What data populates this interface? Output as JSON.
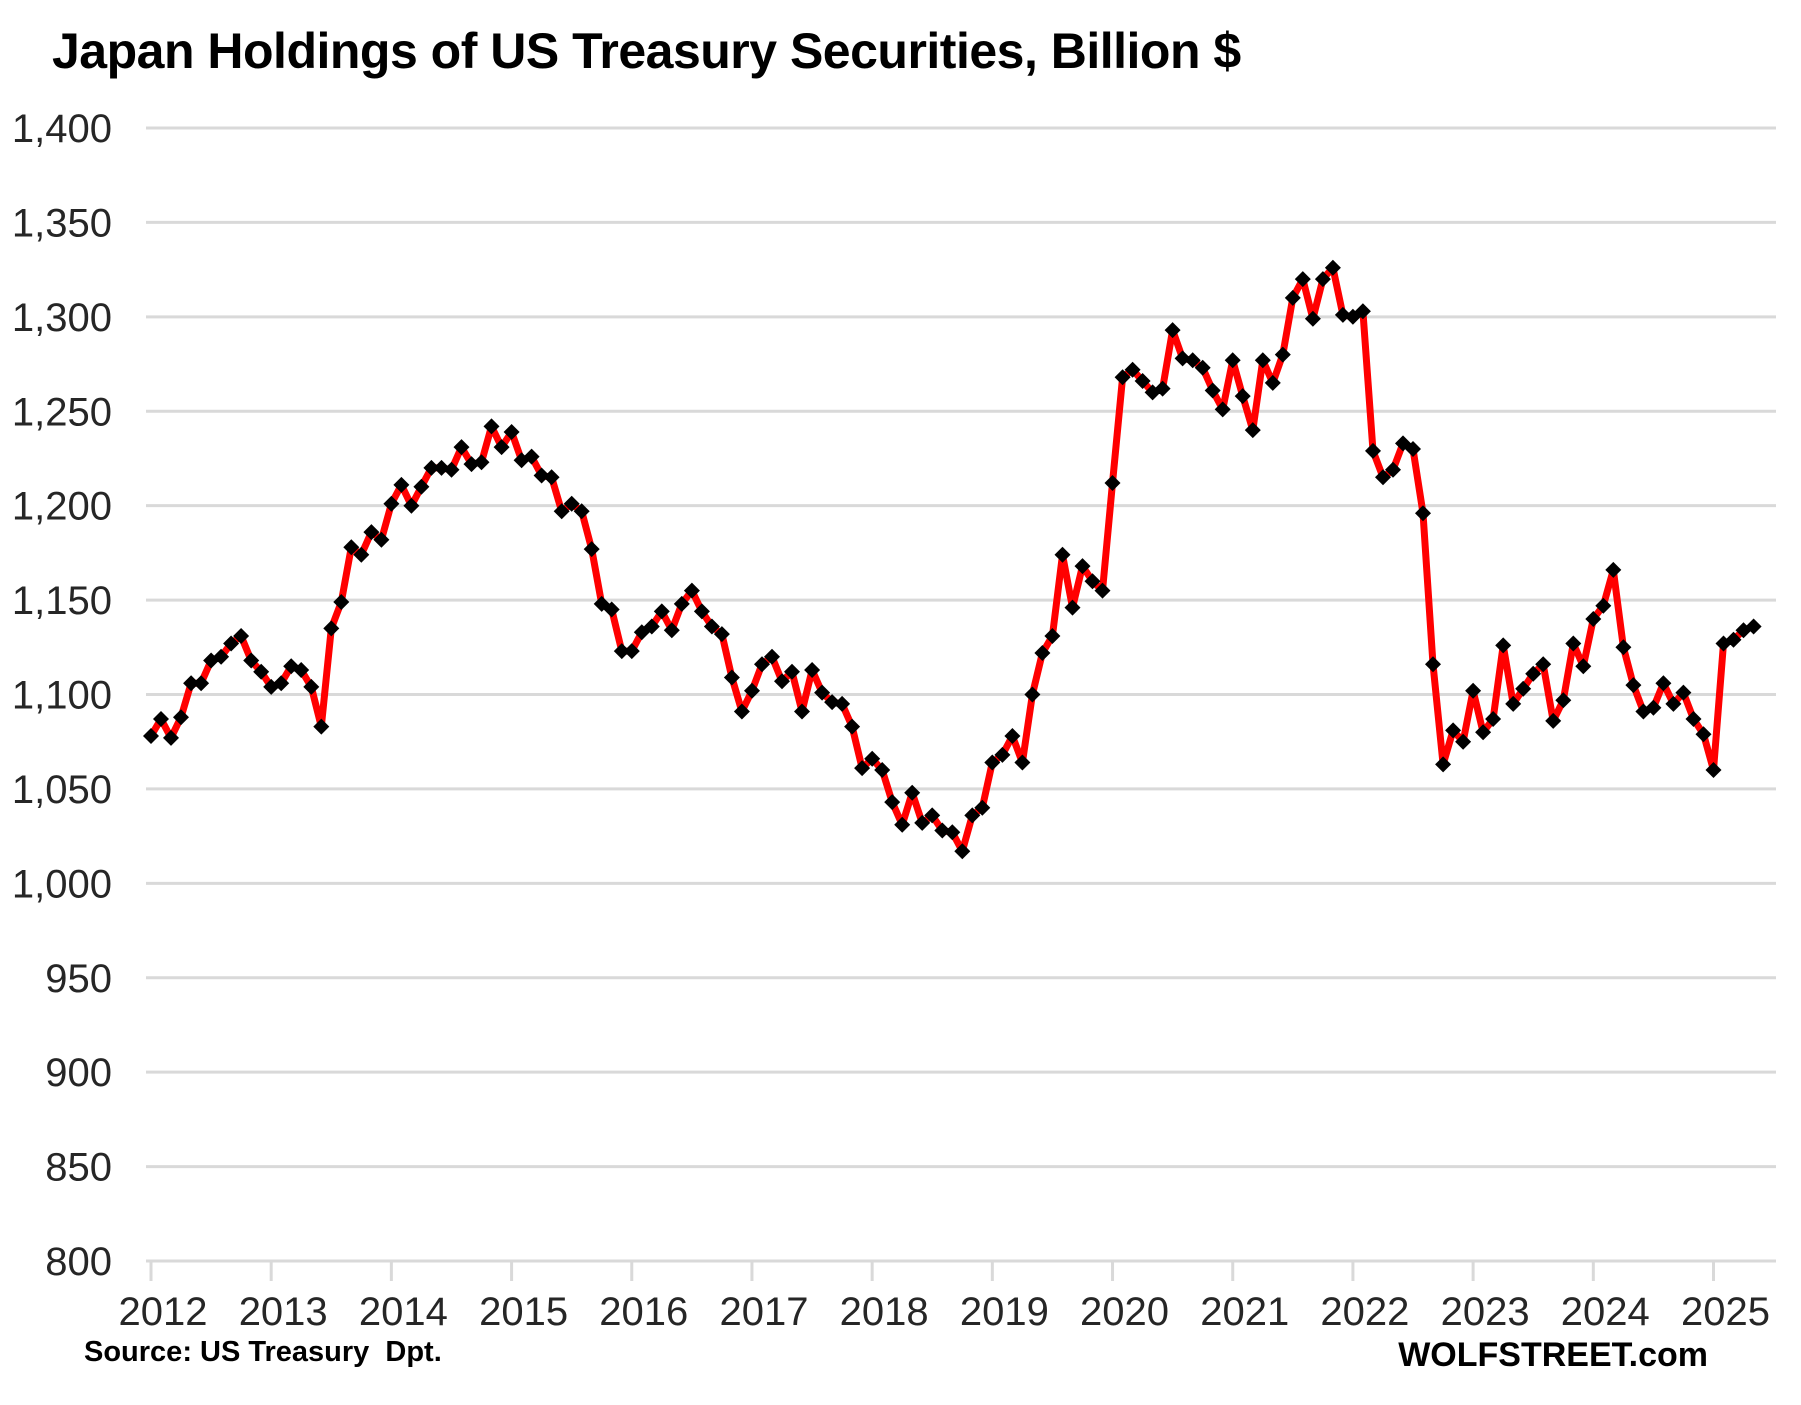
{
  "title": "Japan Holdings of US Treasury Securities, Billion $",
  "source": "Source: US Treasury  Dpt.",
  "branding": "WOLFSTREET.com",
  "chart_data": {
    "type": "line",
    "title": "Japan Holdings of US Treasury Securities, Billion $",
    "ylabel": "Billion $",
    "xlabel": "",
    "frequency": "monthly",
    "start_month": "2012-01",
    "end_month": "2025-05",
    "ylim": [
      800,
      1400
    ],
    "y_tick_step": 50,
    "grid": true,
    "legend": "none",
    "line_color": "#FF0000",
    "marker": "diamond",
    "marker_color": "#000000",
    "gridline_color": "#D9D9D9",
    "axis_label_color": "#262626",
    "x_tick_labels": [
      "2012",
      "2013",
      "2014",
      "2015",
      "2016",
      "2017",
      "2018",
      "2019",
      "2020",
      "2021",
      "2022",
      "2023",
      "2024",
      "2025"
    ],
    "values": [
      1078,
      1087,
      1077,
      1088,
      1106,
      1106,
      1118,
      1120,
      1127,
      1131,
      1118,
      1112,
      1104,
      1106,
      1115,
      1113,
      1104,
      1083,
      1135,
      1149,
      1178,
      1174,
      1186,
      1182,
      1201,
      1211,
      1200,
      1210,
      1220,
      1220,
      1219,
      1231,
      1222,
      1223,
      1242,
      1231,
      1239,
      1224,
      1226,
      1216,
      1215,
      1197,
      1201,
      1197,
      1177,
      1148,
      1145,
      1123,
      1123,
      1133,
      1136,
      1144,
      1134,
      1148,
      1155,
      1144,
      1136,
      1132,
      1109,
      1091,
      1102,
      1116,
      1120,
      1107,
      1112,
      1091,
      1113,
      1101,
      1096,
      1095,
      1083,
      1061,
      1066,
      1060,
      1043,
      1031,
      1048,
      1032,
      1036,
      1028,
      1027,
      1017,
      1036,
      1040,
      1064,
      1068,
      1078,
      1064,
      1100,
      1122,
      1131,
      1174,
      1146,
      1168,
      1160,
      1155,
      1212,
      1268,
      1272,
      1266,
      1260,
      1262,
      1293,
      1278,
      1277,
      1273,
      1261,
      1251,
      1277,
      1258,
      1240,
      1277,
      1265,
      1280,
      1310,
      1320,
      1299,
      1320,
      1326,
      1301,
      1300,
      1303,
      1229,
      1215,
      1219,
      1233,
      1230,
      1196,
      1116,
      1063,
      1081,
      1075,
      1102,
      1080,
      1087,
      1126,
      1095,
      1103,
      1111,
      1116,
      1086,
      1097,
      1127,
      1115,
      1140,
      1147,
      1166,
      1125,
      1105,
      1091,
      1093,
      1106,
      1095,
      1101,
      1087,
      1079,
      1060,
      1127,
      1129,
      1134,
      1136
    ]
  }
}
